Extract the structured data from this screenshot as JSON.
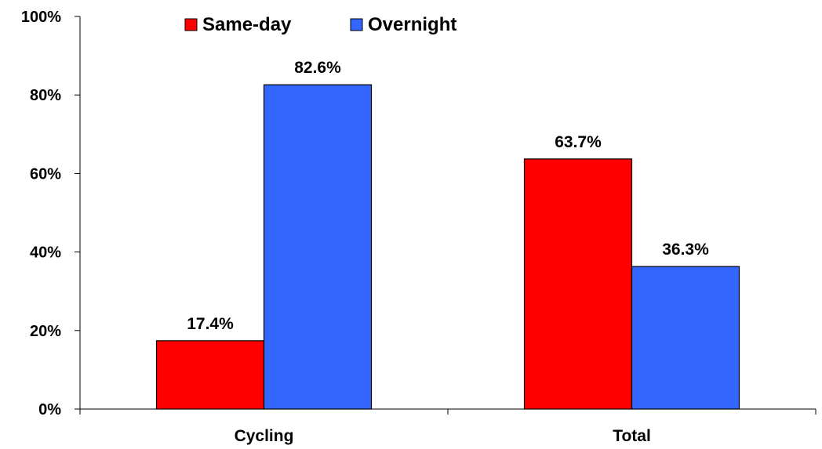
{
  "chart_data": {
    "type": "bar",
    "categories": [
      "Cycling",
      "Total"
    ],
    "series": [
      {
        "name": "Same-day",
        "values": [
          17.4,
          63.7
        ],
        "color": "#ff0000"
      },
      {
        "name": "Overnight",
        "values": [
          82.6,
          36.3
        ],
        "color": "#3366ff"
      }
    ],
    "value_labels": [
      [
        "17.4%",
        "63.7%"
      ],
      [
        "82.6%",
        "36.3%"
      ]
    ],
    "ylim": [
      0,
      100
    ],
    "y_ticks": [
      0,
      20,
      40,
      60,
      80,
      100
    ],
    "y_tick_labels": [
      "0%",
      "20%",
      "40%",
      "60%",
      "80%",
      "100%"
    ],
    "grid": false,
    "legend_position": "top-left",
    "title": "",
    "xlabel": "",
    "ylabel": ""
  }
}
